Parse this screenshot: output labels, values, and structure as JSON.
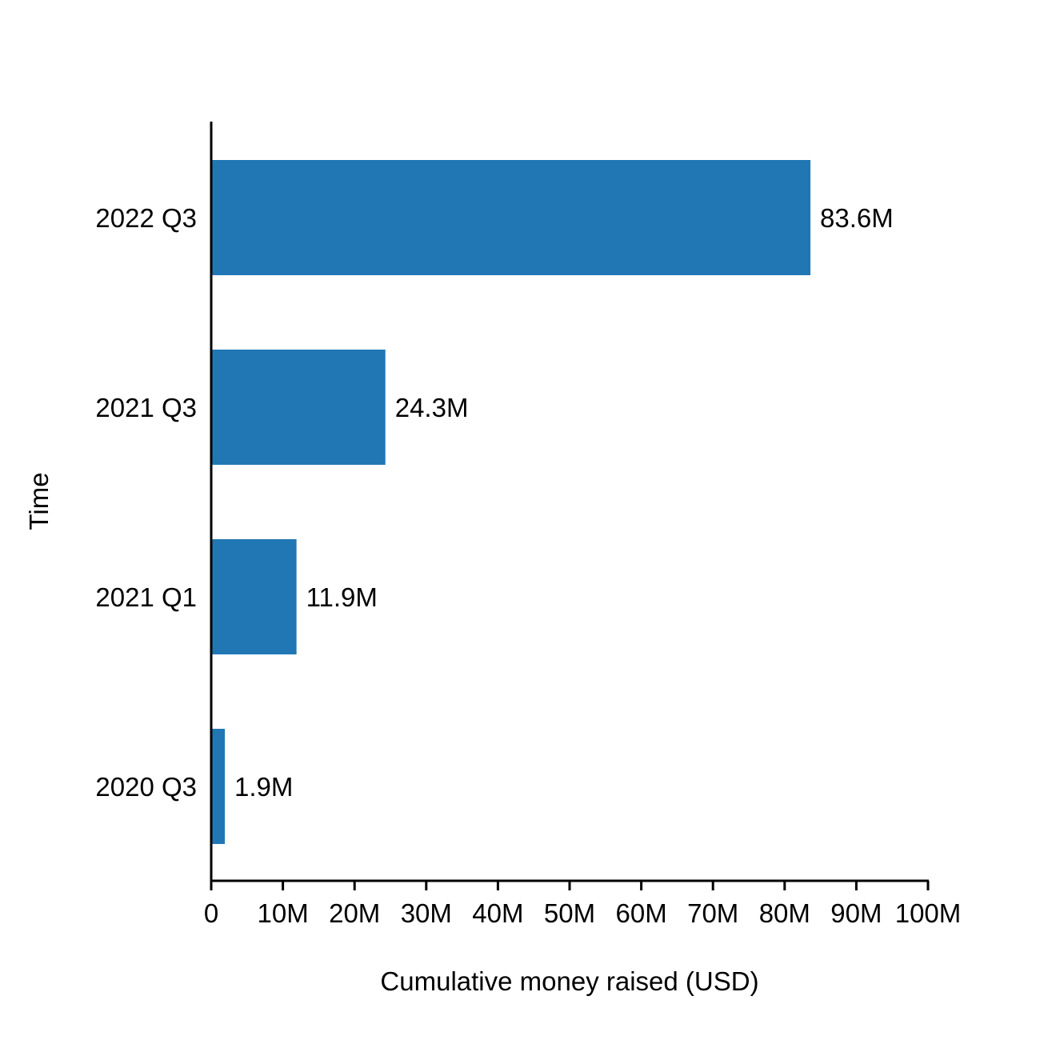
{
  "chart_data": {
    "type": "bar",
    "orientation": "horizontal",
    "title": "",
    "xlabel": "Cumulative money raised (USD)",
    "ylabel": "Time",
    "categories": [
      "2020 Q3",
      "2021 Q1",
      "2021 Q3",
      "2022 Q3"
    ],
    "values": [
      1900000,
      11900000,
      24300000,
      83600000
    ],
    "data_labels": [
      "1.9M",
      "11.9M",
      "24.3M",
      "83.6M"
    ],
    "xlim": [
      0,
      100000000
    ],
    "xticks": [
      0,
      10000000,
      20000000,
      30000000,
      40000000,
      50000000,
      60000000,
      70000000,
      80000000,
      90000000,
      100000000
    ],
    "xtick_labels": [
      "0",
      "10M",
      "20M",
      "30M",
      "40M",
      "50M",
      "60M",
      "70M",
      "80M",
      "90M",
      "100M"
    ],
    "bar_color": "#2077b4",
    "grid": false,
    "legend": "none"
  }
}
